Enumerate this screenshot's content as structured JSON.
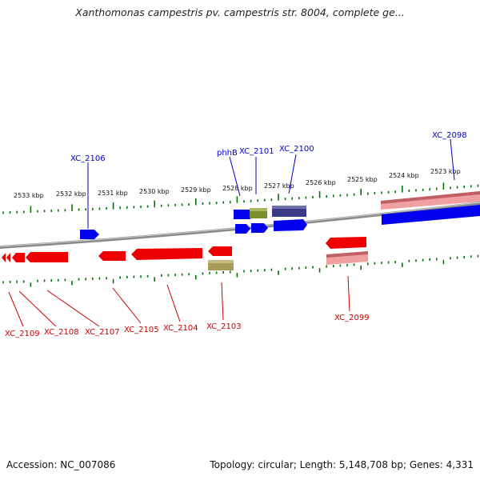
{
  "title": "Xanthomonas campestris pv. campestris str. 8004, complete ge...",
  "footer": {
    "accession": "Accession: NC_007086",
    "topology": "Topology: circular; Length: 5,148,708 bp; Genes: 4,331"
  },
  "colors": {
    "forward_gene": "#0000ee",
    "reverse_gene": "#ee0000",
    "forward_label": "#0000cc",
    "reverse_label": "#cc0000",
    "tick": "#007700",
    "backbone": "#888888"
  },
  "kbp_labels": [
    "2533 kbp",
    "2532 kbp",
    "2531 kbp",
    "2530 kbp",
    "2529 kbp",
    "2528 kbp",
    "2527 kbp",
    "2526 kbp",
    "2525 kbp",
    "2524 kbp",
    "2523 kbp"
  ],
  "forward_genes": [
    "XC_2106",
    "phhB",
    "XC_2101",
    "XC_2100",
    "XC_2098"
  ],
  "reverse_genes": [
    "XC_2109",
    "XC_2108",
    "XC_2107",
    "XC_2105",
    "XC_2104",
    "XC_2103",
    "XC_2099"
  ]
}
